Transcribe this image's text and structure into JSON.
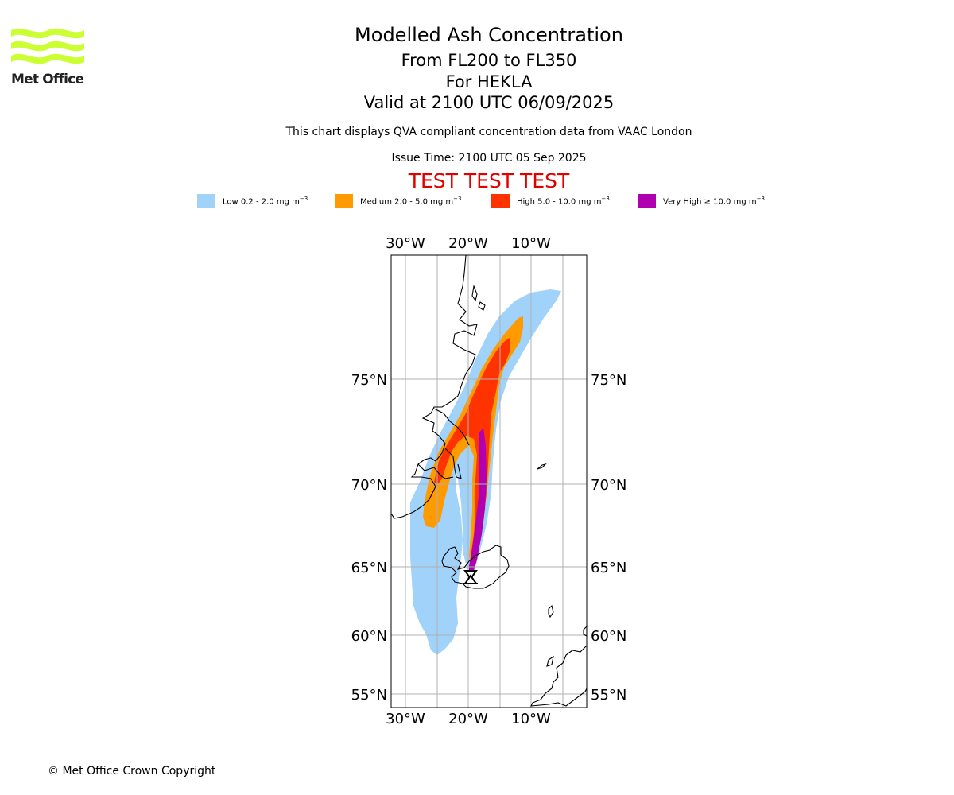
{
  "logo": {
    "text": "Met Office",
    "color": "#ccff33"
  },
  "header": {
    "title": "Modelled Ash Concentration",
    "levels": "From FL200 to FL350",
    "volcano": "For HEKLA",
    "valid": "Valid at 2100 UTC 06/09/2025",
    "description": "This chart displays QVA compliant concentration data from VAAC London",
    "issue_time": "Issue Time: 2100 UTC 05 Sep 2025",
    "test_banner": "TEST TEST TEST"
  },
  "legend": [
    {
      "label": "Low 0.2 - 2.0 mg m",
      "unit_sup": "−3",
      "color": "#a0d2fa"
    },
    {
      "label": "Medium 2.0 - 5.0 mg m",
      "unit_sup": "−3",
      "color": "#ff9a00"
    },
    {
      "label": "High 5.0 - 10.0 mg m",
      "unit_sup": "−3",
      "color": "#ff3300"
    },
    {
      "label": "Very High  ≥  10.0 mg m",
      "unit_sup": "−3",
      "color": "#b000b0"
    }
  ],
  "map": {
    "lon_ticks": [
      "30°W",
      "20°W",
      "10°W"
    ],
    "lat_ticks": [
      "75°N",
      "70°N",
      "65°N",
      "60°N",
      "55°N"
    ],
    "volcano_marker": "triangle-marker",
    "colors": {
      "grid": "#b0b0b0",
      "coast": "#000000"
    }
  },
  "footer": {
    "copyright": "© Met Office Crown Copyright"
  }
}
